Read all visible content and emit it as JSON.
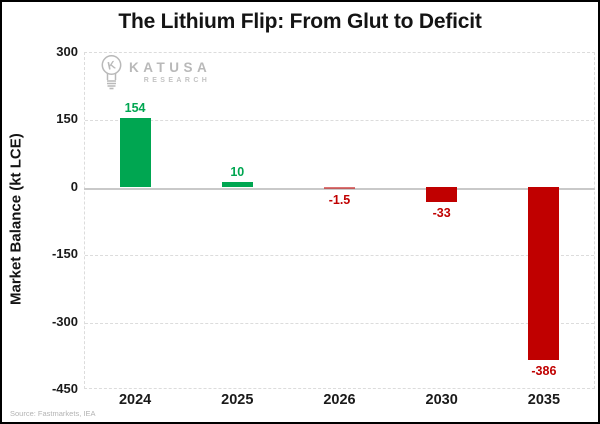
{
  "title": "The Lithium Flip: From Glut to Deficit",
  "logo": {
    "brand": "KATUSA",
    "sub": "RESEARCH",
    "icon": "lightbulb-k-icon"
  },
  "source": "Source: Fastmarkets, IEA",
  "chart_data": {
    "type": "bar",
    "categories": [
      "2024",
      "2025",
      "2026",
      "2030",
      "2035"
    ],
    "values": [
      154,
      10,
      -1.5,
      -33,
      -386
    ],
    "labels": [
      "154",
      "10",
      "-1.5",
      "-33",
      "-386"
    ],
    "title": "The Lithium Flip: From Glut to Deficit",
    "xlabel": "",
    "ylabel": "Market Balance (kt LCE)",
    "ylim": [
      -450,
      300
    ],
    "yticks": [
      300,
      150,
      0,
      -150,
      -300,
      -450
    ],
    "grid": "horizontal-dashed",
    "legend": "none",
    "positive_color": "#00A651",
    "negative_color": "#C00000"
  },
  "colors": {
    "positive": "#00A651",
    "negative": "#C00000",
    "gridline": "#dcdcdc",
    "zero_line": "#c9c9c9",
    "logo_gray": "#b9b9b9",
    "source_gray": "#b3b3b3",
    "text": "#141414"
  }
}
